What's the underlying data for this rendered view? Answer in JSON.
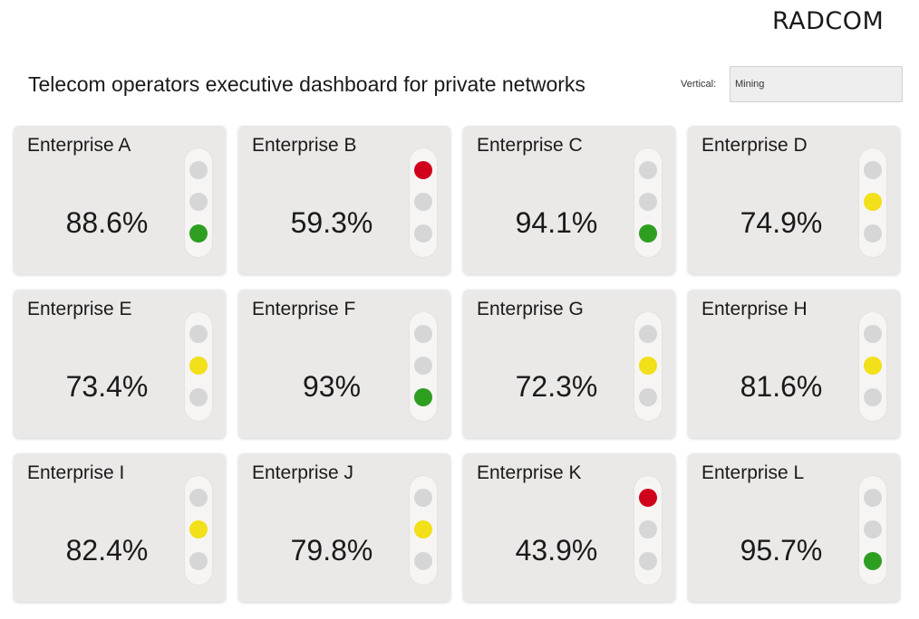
{
  "brand": {
    "logo_text": "RADCOM"
  },
  "header": {
    "title": "Telecom operators executive dashboard for private networks",
    "vertical_label": "Vertical:",
    "vertical_value": "Mining"
  },
  "colors": {
    "red": "#d0021b",
    "yellow": "#f1e01a",
    "green": "#2e9e21",
    "off": "#d6d6d6",
    "card_bg": "#ebe9e8"
  },
  "enterprises": [
    {
      "name": "Enterprise A",
      "value": "88.6%",
      "status": "green"
    },
    {
      "name": "Enterprise B",
      "value": "59.3%",
      "status": "red"
    },
    {
      "name": "Enterprise C",
      "value": "94.1%",
      "status": "green"
    },
    {
      "name": "Enterprise D",
      "value": "74.9%",
      "status": "yellow"
    },
    {
      "name": "Enterprise E",
      "value": "73.4%",
      "status": "yellow"
    },
    {
      "name": "Enterprise F",
      "value": "93%",
      "status": "green"
    },
    {
      "name": "Enterprise G",
      "value": "72.3%",
      "status": "yellow"
    },
    {
      "name": "Enterprise H",
      "value": "81.6%",
      "status": "yellow"
    },
    {
      "name": "Enterprise I",
      "value": "82.4%",
      "status": "yellow"
    },
    {
      "name": "Enterprise J",
      "value": "79.8%",
      "status": "yellow"
    },
    {
      "name": "Enterprise K",
      "value": "43.9%",
      "status": "red"
    },
    {
      "name": "Enterprise L",
      "value": "95.7%",
      "status": "green"
    }
  ]
}
